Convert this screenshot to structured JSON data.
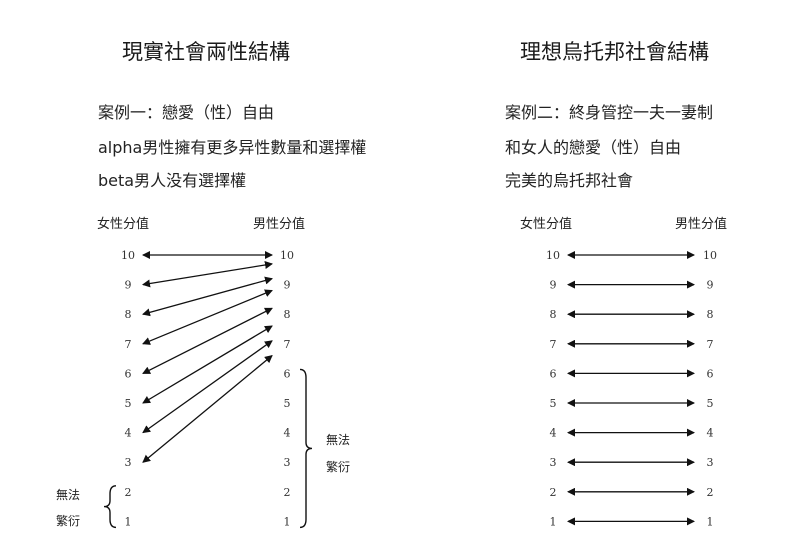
{
  "left": {
    "title": "現實社會兩性結構",
    "lines": [
      "案例一：戀愛（性）自由",
      "alpha男性擁有更多异性數量和選擇權",
      "beta男人没有選擇權"
    ],
    "female_header": "女性分值",
    "male_header": "男性分值",
    "levels": [
      10,
      9,
      8,
      7,
      6,
      5,
      4,
      3,
      2,
      1
    ],
    "connections": [
      {
        "female": 10,
        "male": 10
      },
      {
        "female": 9,
        "male": 9.7
      },
      {
        "female": 8,
        "male": 9.2
      },
      {
        "female": 7,
        "male": 8.8
      },
      {
        "female": 6,
        "male": 8.2
      },
      {
        "female": 5,
        "male": 7.6
      },
      {
        "female": 4,
        "male": 7.1
      },
      {
        "female": 3,
        "male": 6.6
      }
    ],
    "female_excluded_label": [
      "無法",
      "繁衍"
    ],
    "female_excluded_levels": [
      1,
      2
    ],
    "male_excluded_label": [
      "無法",
      "繁衍"
    ],
    "male_excluded_levels": [
      1,
      6
    ]
  },
  "right": {
    "title": "理想烏托邦社會結構",
    "lines": [
      "案例二：終身管控一夫一妻制",
      "和女人的戀愛（性）自由",
      "完美的烏托邦社會"
    ],
    "female_header": "女性分值",
    "male_header": "男性分值",
    "levels": [
      10,
      9,
      8,
      7,
      6,
      5,
      4,
      3,
      2,
      1
    ],
    "connections": [
      {
        "female": 10,
        "male": 10
      },
      {
        "female": 9,
        "male": 9
      },
      {
        "female": 8,
        "male": 8
      },
      {
        "female": 7,
        "male": 7
      },
      {
        "female": 6,
        "male": 6
      },
      {
        "female": 5,
        "male": 5
      },
      {
        "female": 4,
        "male": 4
      },
      {
        "female": 3,
        "male": 3
      },
      {
        "female": 2,
        "male": 2
      },
      {
        "female": 1,
        "male": 1
      }
    ]
  },
  "colors": {
    "arrow": "#111111",
    "text": "#222222"
  }
}
